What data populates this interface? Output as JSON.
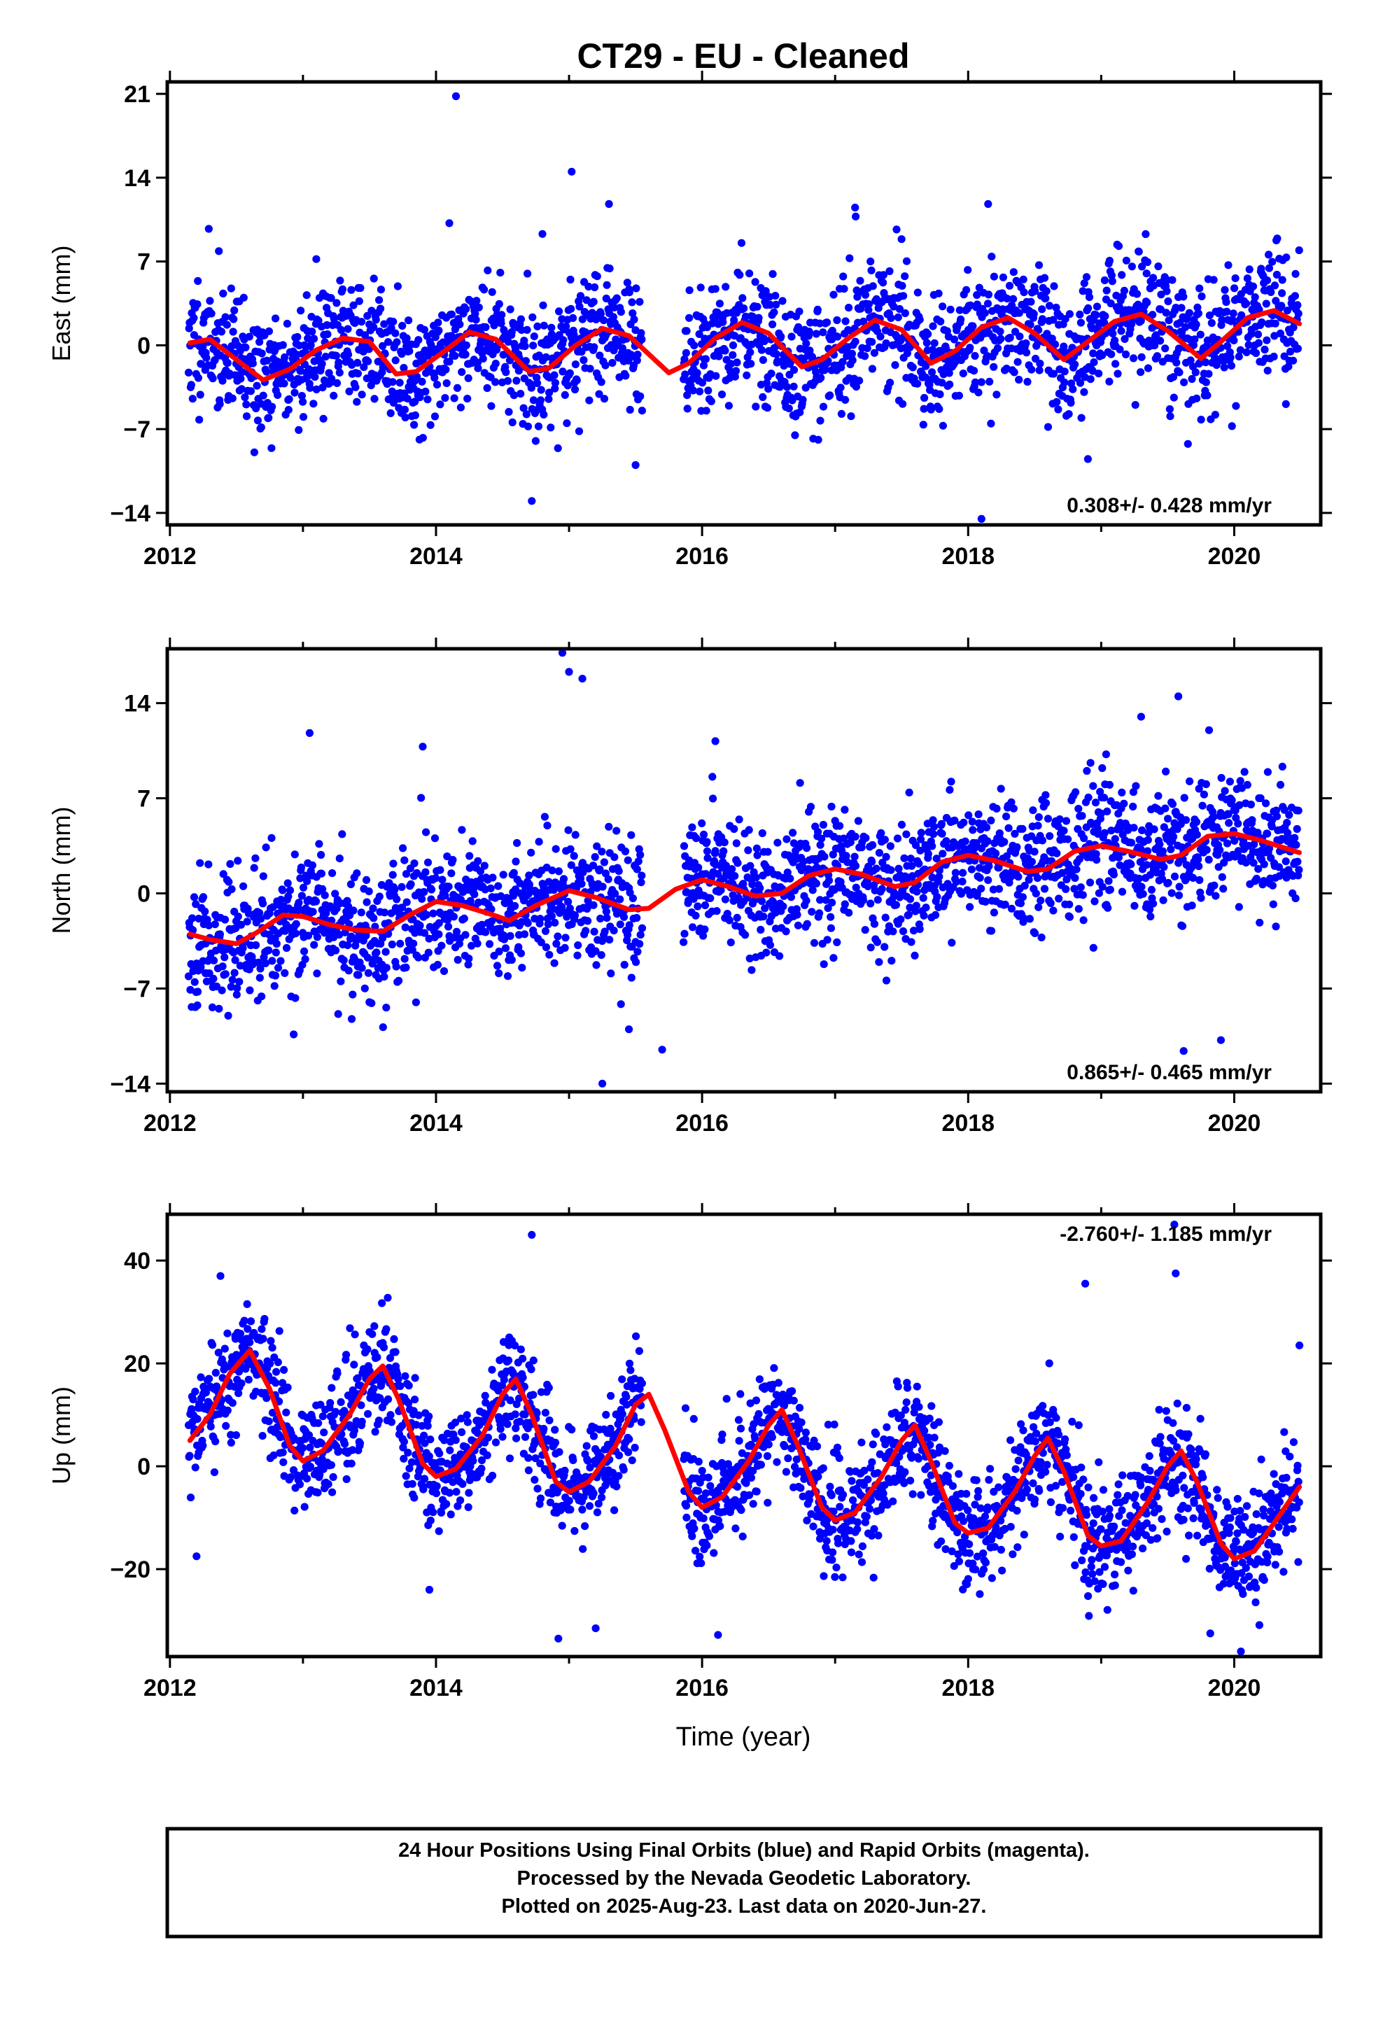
{
  "chart_data": {
    "type": "scatter",
    "title": "CT29  - EU - Cleaned",
    "xlabel": "Time (year)",
    "xlim": [
      2011.98,
      2020.65
    ],
    "xticks": [
      2012,
      2014,
      2016,
      2018,
      2020
    ],
    "xtick_labels": [
      "2012",
      "2014",
      "2016",
      "2018",
      "2020"
    ],
    "grid": false,
    "marker_color": "#0000ff",
    "fit_color": "#ff0000",
    "series_colors": {
      "final_orbits": "#0000ff",
      "rapid_orbits": "#ff00ff",
      "model_fit": "#ff0000"
    },
    "data_start": 2012.14,
    "last_data": 2020.49,
    "panels": [
      {
        "component": "East",
        "ylabel": "East (mm)",
        "ylim": [
          -15,
          22
        ],
        "yticks": [
          -14,
          -7,
          0,
          7,
          14,
          21
        ],
        "ytick_labels": [
          "−14",
          "−7",
          "0",
          "7",
          "14",
          "21"
        ],
        "rate_label": "0.308+/- 0.428 mm/yr",
        "velocity_mm_per_yr": 0.308,
        "fit_points": [
          [
            2012.15,
            0.2
          ],
          [
            2012.3,
            0.5
          ],
          [
            2012.5,
            -1.2
          ],
          [
            2012.7,
            -2.9
          ],
          [
            2012.9,
            -2.0
          ],
          [
            2013.1,
            -0.4
          ],
          [
            2013.3,
            0.6
          ],
          [
            2013.5,
            0.3
          ],
          [
            2013.7,
            -2.4
          ],
          [
            2013.85,
            -2.2
          ],
          [
            2014.05,
            -0.6
          ],
          [
            2014.25,
            1.1
          ],
          [
            2014.45,
            0.5
          ],
          [
            2014.7,
            -2.2
          ],
          [
            2014.85,
            -1.9
          ],
          [
            2015.05,
            0.0
          ],
          [
            2015.25,
            1.4
          ],
          [
            2015.45,
            0.8
          ],
          [
            2015.75,
            -2.3
          ],
          [
            2015.9,
            -1.5
          ],
          [
            2016.1,
            0.6
          ],
          [
            2016.3,
            1.9
          ],
          [
            2016.5,
            1.0
          ],
          [
            2016.75,
            -1.8
          ],
          [
            2016.9,
            -1.2
          ],
          [
            2017.1,
            0.6
          ],
          [
            2017.3,
            2.1
          ],
          [
            2017.5,
            1.3
          ],
          [
            2017.72,
            -1.5
          ],
          [
            2017.9,
            -0.5
          ],
          [
            2018.1,
            1.5
          ],
          [
            2018.3,
            2.3
          ],
          [
            2018.5,
            1.0
          ],
          [
            2018.72,
            -1.2
          ],
          [
            2018.9,
            0.3
          ],
          [
            2019.1,
            2.0
          ],
          [
            2019.3,
            2.6
          ],
          [
            2019.5,
            1.2
          ],
          [
            2019.75,
            -1.1
          ],
          [
            2019.9,
            0.3
          ],
          [
            2020.1,
            2.3
          ],
          [
            2020.3,
            2.9
          ],
          [
            2020.49,
            1.8
          ]
        ],
        "scatter": {
          "count": 2200,
          "seed": 11,
          "annual_amp": 1.8,
          "annual_phase": 0.0,
          "semi_amp": 0.6,
          "noise_sd": 2.6,
          "outliers": [
            [
              2014.15,
              20.8
            ],
            [
              2015.02,
              14.5
            ],
            [
              2014.72,
              -13.0
            ],
            [
              2018.1,
              -14.5
            ],
            [
              2015.3,
              11.8
            ],
            [
              2017.15,
              11.5
            ],
            [
              2018.15,
              11.8
            ],
            [
              2014.1,
              10.2
            ],
            [
              2015.5,
              -10.0
            ],
            [
              2013.1,
              7.2
            ],
            [
              2014.8,
              9.3
            ],
            [
              2018.9,
              -9.5
            ]
          ]
        }
      },
      {
        "component": "North",
        "ylabel": "North (mm)",
        "ylim": [
          -14.6,
          18.0
        ],
        "yticks": [
          -14,
          -7,
          0,
          7,
          14
        ],
        "ytick_labels": [
          "−14",
          "−7",
          "0",
          "7",
          "14"
        ],
        "rate_label": "0.865+/- 0.465 mm/yr",
        "velocity_mm_per_yr": 0.865,
        "fit_points": [
          [
            2012.15,
            -3.0
          ],
          [
            2012.3,
            -3.4
          ],
          [
            2012.5,
            -3.7
          ],
          [
            2012.65,
            -2.9
          ],
          [
            2012.85,
            -1.6
          ],
          [
            2013.0,
            -1.7
          ],
          [
            2013.2,
            -2.3
          ],
          [
            2013.4,
            -2.7
          ],
          [
            2013.6,
            -2.8
          ],
          [
            2013.8,
            -1.6
          ],
          [
            2014.0,
            -0.6
          ],
          [
            2014.2,
            -0.9
          ],
          [
            2014.4,
            -1.5
          ],
          [
            2014.55,
            -2.0
          ],
          [
            2014.75,
            -0.9
          ],
          [
            2015.0,
            0.2
          ],
          [
            2015.2,
            -0.3
          ],
          [
            2015.45,
            -1.2
          ],
          [
            2015.6,
            -1.1
          ],
          [
            2015.8,
            0.3
          ],
          [
            2016.0,
            1.0
          ],
          [
            2016.2,
            0.5
          ],
          [
            2016.4,
            -0.2
          ],
          [
            2016.6,
            0.0
          ],
          [
            2016.8,
            1.3
          ],
          [
            2017.0,
            1.8
          ],
          [
            2017.2,
            1.4
          ],
          [
            2017.45,
            0.5
          ],
          [
            2017.6,
            0.8
          ],
          [
            2017.8,
            2.3
          ],
          [
            2018.0,
            2.8
          ],
          [
            2018.2,
            2.4
          ],
          [
            2018.45,
            1.6
          ],
          [
            2018.6,
            1.8
          ],
          [
            2018.8,
            3.1
          ],
          [
            2019.0,
            3.5
          ],
          [
            2019.2,
            3.1
          ],
          [
            2019.45,
            2.5
          ],
          [
            2019.6,
            2.8
          ],
          [
            2019.8,
            4.2
          ],
          [
            2020.0,
            4.4
          ],
          [
            2020.2,
            3.9
          ],
          [
            2020.49,
            3.0
          ]
        ],
        "scatter": {
          "count": 2200,
          "seed": 23,
          "annual_amp": 0.9,
          "annual_phase": 1.2,
          "semi_amp": 0.5,
          "noise_sd": 2.4,
          "outliers": [
            [
              2014.95,
              17.7
            ],
            [
              2015.0,
              16.3
            ],
            [
              2015.1,
              15.8
            ],
            [
              2019.58,
              14.5
            ],
            [
              2019.3,
              13.0
            ],
            [
              2013.05,
              11.8
            ],
            [
              2015.7,
              -11.5
            ],
            [
              2019.62,
              -11.6
            ],
            [
              2019.9,
              -10.8
            ],
            [
              2015.25,
              -14.0
            ],
            [
              2015.45,
              -10.0
            ],
            [
              2013.9,
              10.8
            ],
            [
              2016.1,
              11.2
            ]
          ]
        }
      },
      {
        "component": "Up",
        "ylabel": "Up (mm)",
        "ylim": [
          -37,
          49
        ],
        "yticks": [
          -20,
          0,
          20,
          40
        ],
        "ytick_labels": [
          "−20",
          "0",
          "20",
          "40"
        ],
        "rate_label": "-2.760+/- 1.185 mm/yr",
        "velocity_mm_per_yr": -2.76,
        "fit_points": [
          [
            2012.15,
            5.0
          ],
          [
            2012.3,
            10.0
          ],
          [
            2012.45,
            18.0
          ],
          [
            2012.6,
            22.5
          ],
          [
            2012.75,
            15.0
          ],
          [
            2012.9,
            4.0
          ],
          [
            2013.0,
            1.0
          ],
          [
            2013.15,
            3.0
          ],
          [
            2013.35,
            10.0
          ],
          [
            2013.5,
            17.0
          ],
          [
            2013.6,
            19.5
          ],
          [
            2013.72,
            13.0
          ],
          [
            2013.9,
            0.5
          ],
          [
            2014.0,
            -2.0
          ],
          [
            2014.15,
            -0.5
          ],
          [
            2014.35,
            6.0
          ],
          [
            2014.5,
            14.0
          ],
          [
            2014.6,
            17.0
          ],
          [
            2014.72,
            10.0
          ],
          [
            2014.9,
            -3.0
          ],
          [
            2015.0,
            -5.0
          ],
          [
            2015.15,
            -3.0
          ],
          [
            2015.35,
            4.0
          ],
          [
            2015.5,
            12.0
          ],
          [
            2015.6,
            14.0
          ],
          [
            2015.72,
            7.0
          ],
          [
            2015.9,
            -5.0
          ],
          [
            2016.0,
            -8.0
          ],
          [
            2016.15,
            -6.0
          ],
          [
            2016.35,
            1.0
          ],
          [
            2016.5,
            8.0
          ],
          [
            2016.6,
            11.0
          ],
          [
            2016.72,
            4.0
          ],
          [
            2016.9,
            -8.0
          ],
          [
            2017.0,
            -10.5
          ],
          [
            2017.15,
            -9.0
          ],
          [
            2017.35,
            -2.0
          ],
          [
            2017.5,
            5.0
          ],
          [
            2017.6,
            8.0
          ],
          [
            2017.72,
            1.0
          ],
          [
            2017.9,
            -11.0
          ],
          [
            2018.0,
            -13.0
          ],
          [
            2018.15,
            -12.0
          ],
          [
            2018.35,
            -5.0
          ],
          [
            2018.5,
            2.0
          ],
          [
            2018.6,
            5.5
          ],
          [
            2018.72,
            -1.0
          ],
          [
            2018.9,
            -13.5
          ],
          [
            2019.0,
            -15.5
          ],
          [
            2019.15,
            -14.5
          ],
          [
            2019.35,
            -7.0
          ],
          [
            2019.5,
            0.0
          ],
          [
            2019.6,
            3.0
          ],
          [
            2019.72,
            -3.0
          ],
          [
            2019.9,
            -15.0
          ],
          [
            2020.0,
            -18.0
          ],
          [
            2020.15,
            -16.5
          ],
          [
            2020.3,
            -11.0
          ],
          [
            2020.49,
            -4.0
          ]
        ],
        "scatter": {
          "count": 2300,
          "seed": 37,
          "annual_amp": 0.0,
          "annual_phase": 0.0,
          "semi_amp": 0.0,
          "noise_sd": 5.5,
          "outliers": [
            [
              2014.72,
              45.0
            ],
            [
              2019.55,
              47.0
            ],
            [
              2019.56,
              37.5
            ],
            [
              2012.38,
              37.0
            ],
            [
              2018.88,
              35.5
            ],
            [
              2020.49,
              23.5
            ],
            [
              2014.92,
              -33.5
            ],
            [
              2016.12,
              -32.8
            ],
            [
              2020.05,
              -36.0
            ],
            [
              2019.82,
              -32.5
            ],
            [
              2015.2,
              -31.5
            ],
            [
              2013.95,
              -24.0
            ],
            [
              2012.2,
              -17.5
            ]
          ]
        }
      }
    ]
  },
  "footer": {
    "line1": "24 Hour Positions Using Final Orbits (blue) and Rapid Orbits (magenta).",
    "line2": "Processed by the Nevada Geodetic Laboratory.",
    "line3": "Plotted on 2025-Aug-23. Last data on 2020-Jun-27."
  }
}
